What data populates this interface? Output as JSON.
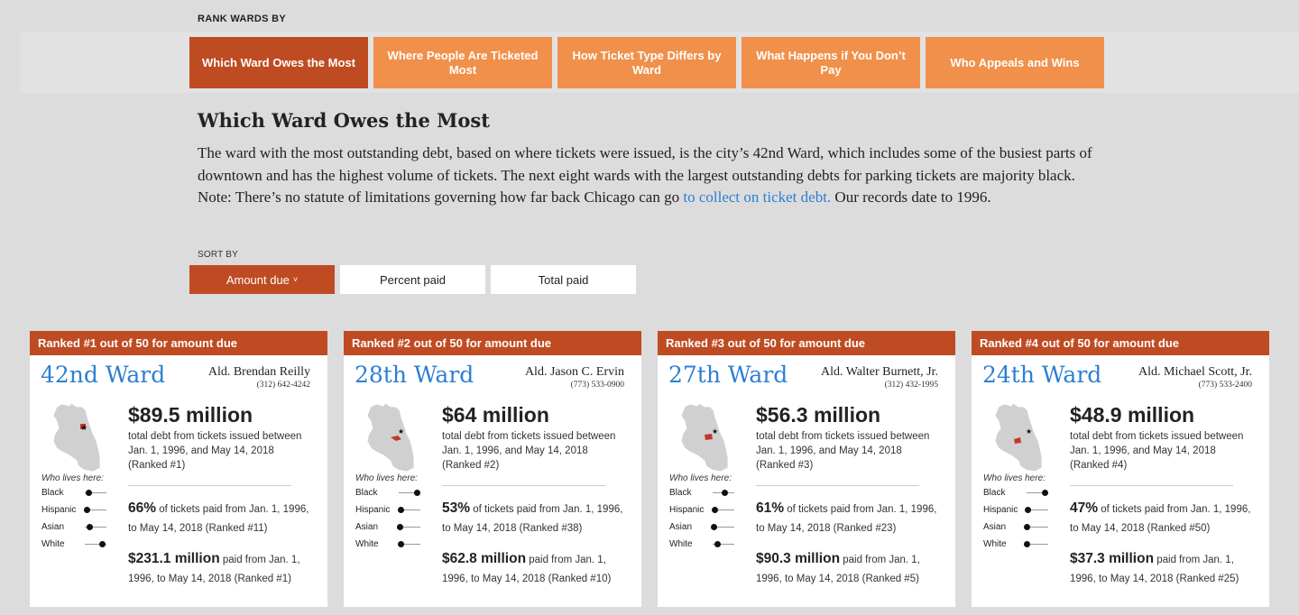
{
  "header": {
    "rank_label": "RANK WARDS BY"
  },
  "tabs": [
    {
      "label": "Which Ward Owes the Most",
      "active": true
    },
    {
      "label": "Where People Are Ticketed Most",
      "active": false
    },
    {
      "label": "How Ticket Type Differs by Ward",
      "active": false
    },
    {
      "label": "What Happens if You Don’t Pay",
      "active": false
    },
    {
      "label": "Who Appeals and Wins",
      "active": false
    }
  ],
  "section": {
    "title": "Which Ward Owes the Most",
    "description_before": "The ward with the most outstanding debt, based on where tickets were issued, is the city’s 42nd Ward, which includes some of the busiest parts of downtown and has the highest volume of tickets. The next eight wards with the largest outstanding debts for parking tickets are majority black. Note: There’s no statute of limitations governing how far back Chicago can go ",
    "description_link": "to collect on ticket debt.",
    "description_after": " Our records date to 1996."
  },
  "sort": {
    "label": "SORT BY",
    "options": [
      {
        "label": "Amount due",
        "active": true
      },
      {
        "label": "Percent paid",
        "active": false
      },
      {
        "label": "Total paid",
        "active": false
      }
    ],
    "chevron": "˅"
  },
  "who_lives_label": "Who lives here:",
  "demo_labels": [
    "Black",
    "Hispanic",
    "Asian",
    "White"
  ],
  "colors": {
    "accent": "#bf4b23",
    "tab": "#f0904a",
    "link": "#2d7fd3"
  },
  "cards": [
    {
      "rank": "Ranked #1 out of 50 for amount due",
      "ward": "42nd Ward",
      "alderman": "Ald. Brendan Reilly",
      "phone": "(312) 642-4242",
      "amount": "$89.5 million",
      "amount_desc": "total debt from tickets issued between Jan. 1, 1996, and May 14, 2018 (Ranked #1)",
      "pct": "66%",
      "pct_desc": " of tickets paid from Jan. 1, 1996, to May 14, 2018 (Ranked #11)",
      "paid": "$231.1 million",
      "paid_desc": " paid from Jan. 1, 1996, to May 14, 2018 (Ranked #1)",
      "demographics": [
        0.15,
        0.1,
        0.2,
        0.8
      ]
    },
    {
      "rank": "Ranked #2 out of 50 for amount due",
      "ward": "28th Ward",
      "alderman": "Ald. Jason C. Ervin",
      "phone": "(773) 533-0900",
      "amount": "$64 million",
      "amount_desc": "total debt from tickets issued between Jan. 1, 1996, and May 14, 2018 (Ranked #2)",
      "pct": "53%",
      "pct_desc": " of tickets paid from Jan. 1, 1996, to May 14, 2018 (Ranked #38)",
      "paid": "$62.8 million",
      "paid_desc": " paid from Jan. 1, 1996, to May 14, 2018 (Ranked #10)",
      "demographics": [
        0.85,
        0.1,
        0.05,
        0.1
      ]
    },
    {
      "rank": "Ranked #3 out of 50 for amount due",
      "ward": "27th Ward",
      "alderman": "Ald. Walter Burnett, Jr.",
      "phone": "(312) 432-1995",
      "amount": "$56.3 million",
      "amount_desc": "total debt from tickets issued between Jan. 1, 1996, and May 14, 2018 (Ranked #3)",
      "pct": "61%",
      "pct_desc": " of tickets paid from Jan. 1, 1996, to May 14, 2018 (Ranked #23)",
      "paid": "$90.3 million",
      "paid_desc": " paid from Jan. 1, 1996, to May 14, 2018 (Ranked #5)",
      "demographics": [
        0.55,
        0.1,
        0.05,
        0.2
      ]
    },
    {
      "rank": "Ranked #4 out of 50 for amount due",
      "ward": "24th Ward",
      "alderman": "Ald. Michael Scott, Jr.",
      "phone": "(773) 533-2400",
      "amount": "$48.9 million",
      "amount_desc": "total debt from tickets issued between Jan. 1, 1996, and May 14, 2018 (Ranked #4)",
      "pct": "47%",
      "pct_desc": " of tickets paid from Jan. 1, 1996, to May 14, 2018 (Ranked #50)",
      "paid": "$37.3 million",
      "paid_desc": " paid from Jan. 1, 1996, to May 14, 2018 (Ranked #25)",
      "demographics": [
        0.85,
        0.05,
        0.02,
        0.02
      ]
    }
  ]
}
